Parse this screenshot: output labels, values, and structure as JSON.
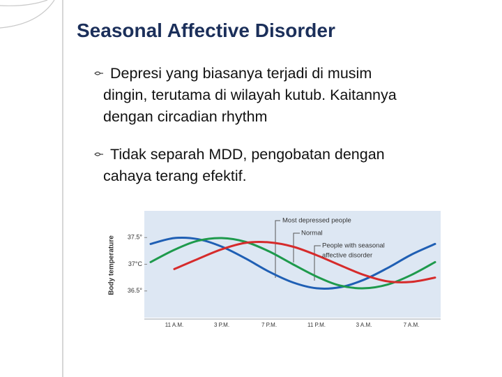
{
  "slide": {
    "title": "Seasonal Affective Disorder",
    "bullets": [
      {
        "lines": [
          "Depresi yang biasanya terjadi di musim",
          "dingin, terutama di wilayah kutub. Kaitannya",
          "dengan circadian rhythm"
        ]
      },
      {
        "lines": [
          "Tidak separah MDD, pengobatan dengan",
          "cahaya terang efektif."
        ]
      }
    ]
  },
  "chart_data": {
    "type": "line",
    "y_label": "Body temperature",
    "categories": [
      null,
      "11 A.M.",
      null,
      "3 P.M.",
      null,
      "7 P.M.",
      null,
      "11 P.M.",
      null,
      "3 A.M.",
      null,
      "7 A.M.",
      null
    ],
    "series": [
      {
        "color": "#1f5fb4",
        "values": [
          37.38,
          37.49,
          37.47,
          37.33,
          37.11,
          36.86,
          36.66,
          36.55,
          36.57,
          36.71,
          36.93,
          37.18,
          37.38
        ]
      },
      {
        "color": "#1e9a4c",
        "values": [
          37.04,
          37.27,
          37.44,
          37.49,
          37.42,
          37.24,
          37.0,
          36.77,
          36.6,
          36.55,
          36.62,
          36.8,
          37.04
        ]
      },
      {
        "color": "#d62b2b",
        "values": [
          null,
          36.91,
          37.1,
          37.28,
          37.4,
          37.41,
          37.33,
          37.17,
          36.98,
          36.8,
          36.68,
          36.67,
          36.75
        ]
      }
    ],
    "ylim": [
      36,
      38
    ],
    "yticks": [
      {
        "value": 36.5,
        "label": "36.5°"
      },
      {
        "value": 37,
        "label": "37°C"
      },
      {
        "value": 37.5,
        "label": "37.5°"
      }
    ],
    "annotations": [
      "Most depressed people",
      "Normal",
      "People with seasonal",
      "affective disorder"
    ]
  }
}
